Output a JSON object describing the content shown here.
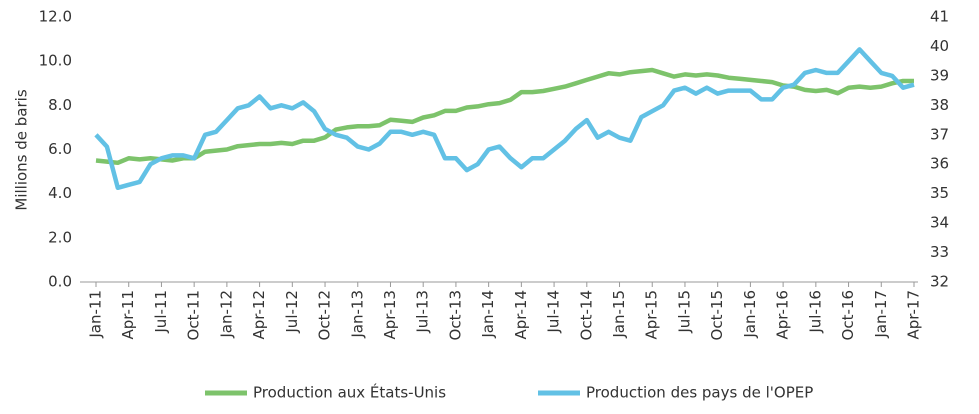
{
  "chart_data": {
    "type": "line",
    "y_label": "Millions de baris",
    "categories": [
      "Jan-11",
      null,
      null,
      "Apr-11",
      null,
      null,
      "Jul-11",
      null,
      null,
      "Oct-11",
      null,
      null,
      "Jan-12",
      null,
      null,
      "Apr-12",
      null,
      null,
      "Jul-12",
      null,
      null,
      "Oct-12",
      null,
      null,
      "Jan-13",
      null,
      null,
      "Apr-13",
      null,
      null,
      "Jul-13",
      null,
      null,
      "Oct-13",
      null,
      null,
      "Jan-14",
      null,
      null,
      "Apr-14",
      null,
      null,
      "Jul-14",
      null,
      null,
      "Oct-14",
      null,
      null,
      "Jan-15",
      null,
      null,
      "Apr-15",
      null,
      null,
      "Jul-15",
      null,
      null,
      "Oct-15",
      null,
      null,
      "Jan-16",
      null,
      null,
      "Apr-16",
      null,
      null,
      "Jul-16",
      null,
      null,
      "Oct-16",
      null,
      null,
      "Jan-17",
      null,
      null,
      "Apr-17"
    ],
    "series": [
      {
        "name": "Production aux États-Unis",
        "color": "#7dc36b",
        "axis": "y",
        "values": [
          5.5,
          5.45,
          5.4,
          5.6,
          5.55,
          5.6,
          5.55,
          5.5,
          5.6,
          5.6,
          5.9,
          5.95,
          6.0,
          6.15,
          6.2,
          6.25,
          6.25,
          6.3,
          6.25,
          6.4,
          6.4,
          6.55,
          6.9,
          7.0,
          7.05,
          7.05,
          7.1,
          7.35,
          7.3,
          7.25,
          7.45,
          7.55,
          7.75,
          7.75,
          7.9,
          7.95,
          8.05,
          8.1,
          8.25,
          8.6,
          8.6,
          8.65,
          8.75,
          8.85,
          9.0,
          9.15,
          9.3,
          9.45,
          9.4,
          9.5,
          9.55,
          9.6,
          9.45,
          9.3,
          9.4,
          9.35,
          9.4,
          9.35,
          9.25,
          9.2,
          9.15,
          9.1,
          9.05,
          8.9,
          8.85,
          8.7,
          8.65,
          8.7,
          8.55,
          8.8,
          8.85,
          8.8,
          8.85,
          9.0,
          9.1,
          9.1
        ]
      },
      {
        "name": "Production des pays de l'OPEP",
        "color": "#62c1e5",
        "axis": "y2",
        "values": [
          37.0,
          36.6,
          35.2,
          35.3,
          35.4,
          36.0,
          36.2,
          36.3,
          36.3,
          36.2,
          37.0,
          37.1,
          37.5,
          37.9,
          38.0,
          38.3,
          37.9,
          38.0,
          37.9,
          38.1,
          37.8,
          37.2,
          37.0,
          36.9,
          36.6,
          36.5,
          36.7,
          37.1,
          37.1,
          37.0,
          37.1,
          37.0,
          36.2,
          36.2,
          35.8,
          36.0,
          36.5,
          36.6,
          36.2,
          35.9,
          36.2,
          36.2,
          36.5,
          36.8,
          37.2,
          37.5,
          36.9,
          37.1,
          36.9,
          36.8,
          37.6,
          37.8,
          38.0,
          38.5,
          38.6,
          38.4,
          38.6,
          38.4,
          38.5,
          38.5,
          38.5,
          38.2,
          38.2,
          38.6,
          38.7,
          39.1,
          39.2,
          39.1,
          39.1,
          39.5,
          39.9,
          39.5,
          39.1,
          39.0,
          38.6,
          38.7
        ]
      }
    ],
    "ylim": [
      0,
      12
    ],
    "yticks": [
      {
        "value": 0,
        "label": "0.0"
      },
      {
        "value": 2,
        "label": "2.0"
      },
      {
        "value": 4,
        "label": "4.0"
      },
      {
        "value": 6,
        "label": "6.0"
      },
      {
        "value": 8,
        "label": "8.0"
      },
      {
        "value": 10,
        "label": "10.0"
      },
      {
        "value": 12,
        "label": "12.0"
      }
    ],
    "y2lim": [
      32,
      41
    ],
    "y2ticks": [
      32,
      33,
      34,
      35,
      36,
      37,
      38,
      39,
      40,
      41
    ],
    "grid": false,
    "legend": "bottom"
  }
}
